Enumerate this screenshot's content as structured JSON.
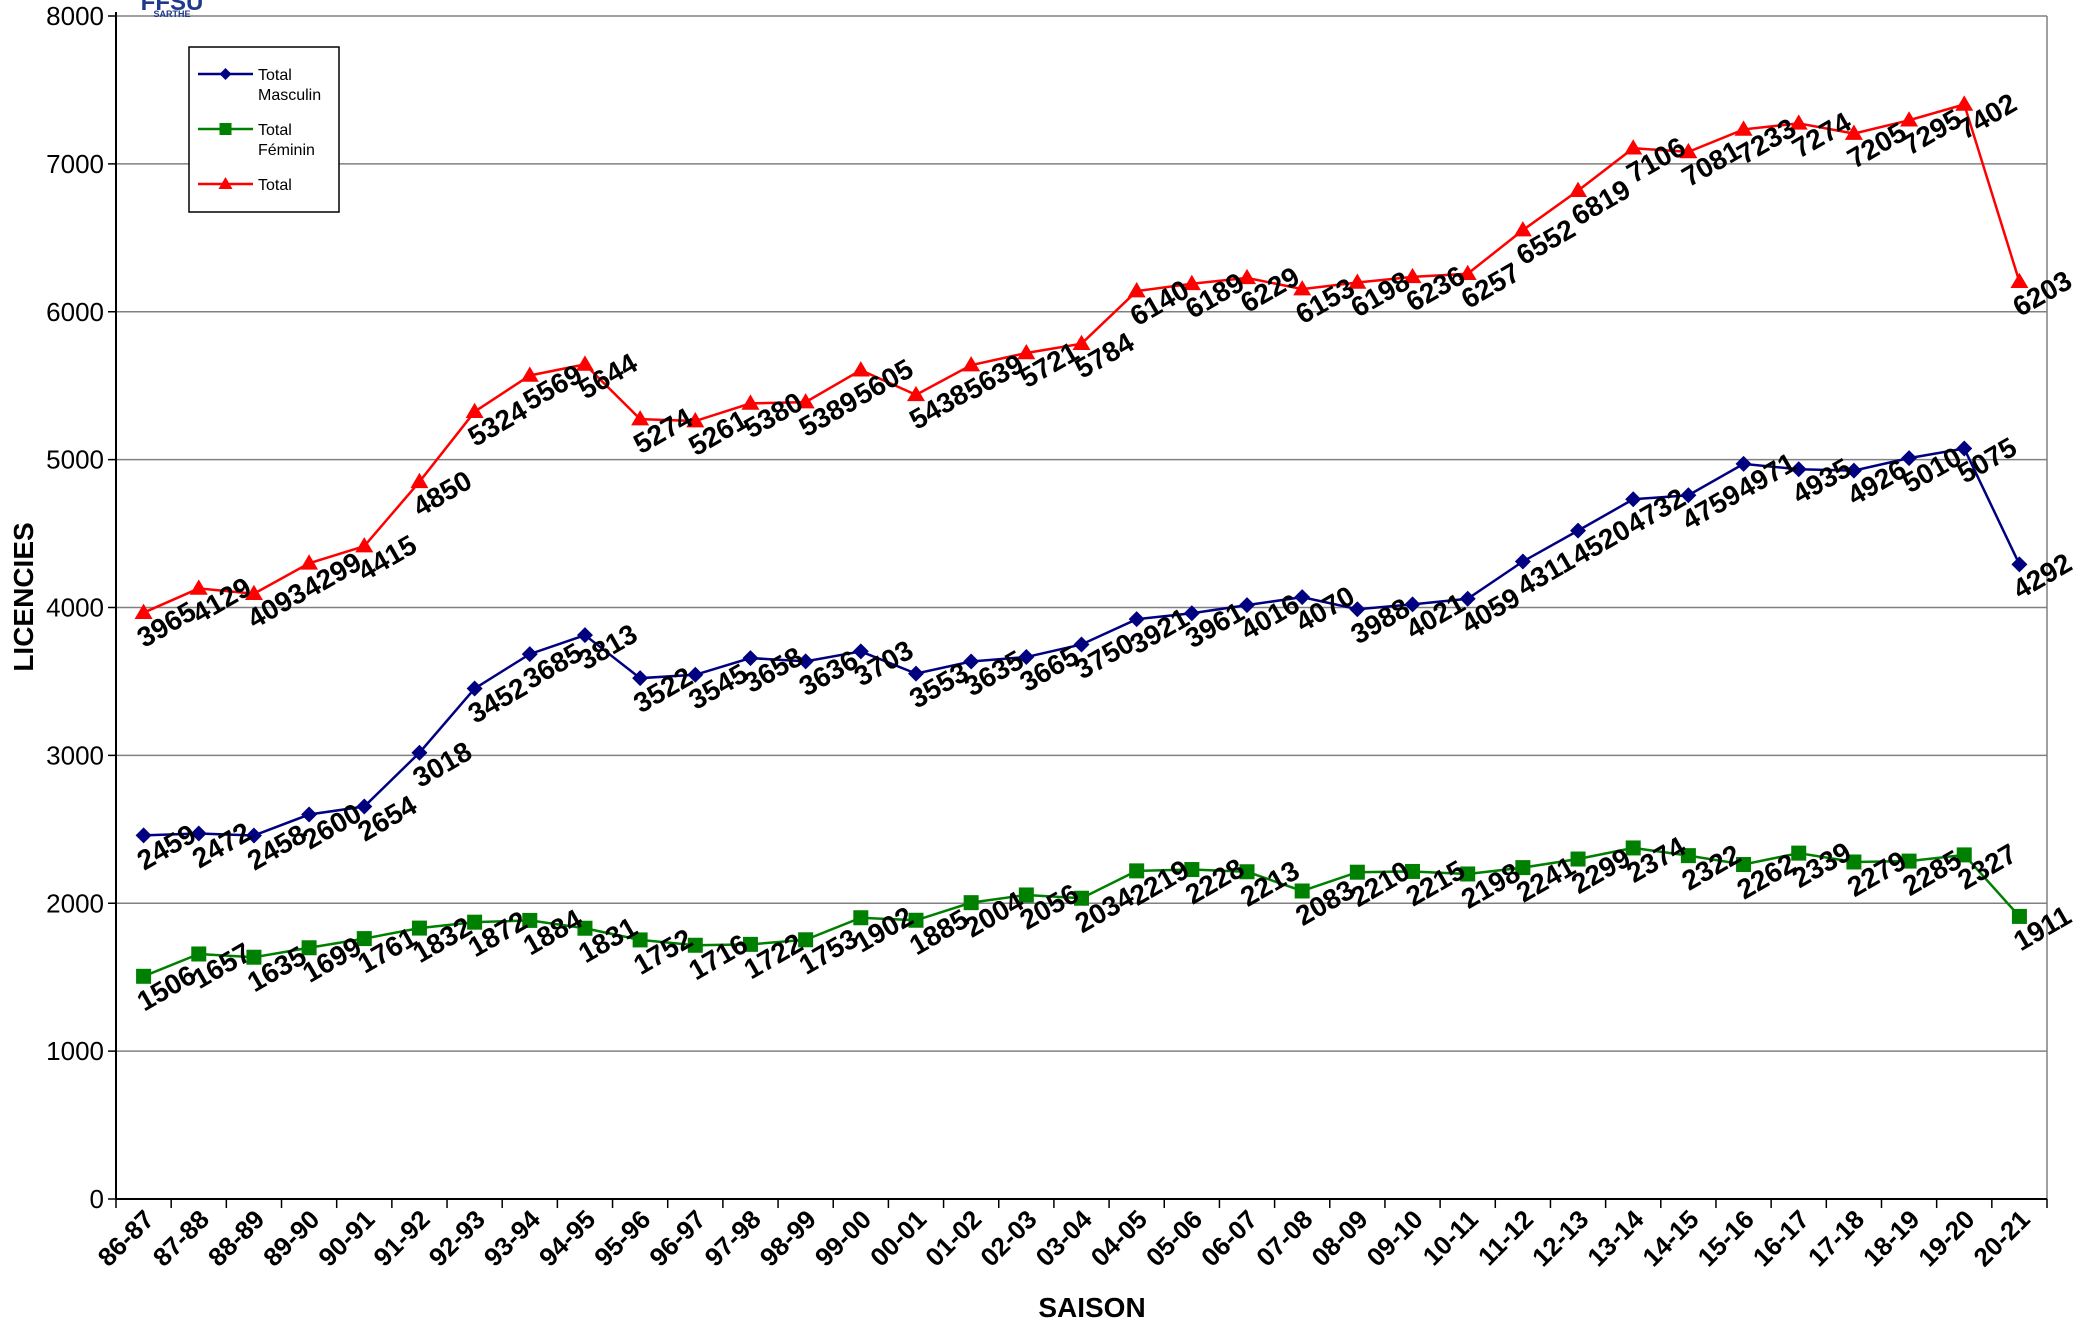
{
  "logo": {
    "line1": "FFSU",
    "line2": "SARTHE"
  },
  "chart_data": {
    "type": "line",
    "title": "",
    "xlabel": "SAISON",
    "ylabel": "LICENCIES",
    "ylim": [
      0,
      8000
    ],
    "yticks": [
      0,
      1000,
      2000,
      3000,
      4000,
      5000,
      6000,
      7000,
      8000
    ],
    "grid": true,
    "legend_position": "top-left",
    "categories": [
      "86-87",
      "87-88",
      "88-89",
      "89-90",
      "90-91",
      "91-92",
      "92-93",
      "93-94",
      "94-95",
      "95-96",
      "96-97",
      "97-98",
      "98-99",
      "99-00",
      "00-01",
      "01-02",
      "02-03",
      "03-04",
      "04-05",
      "05-06",
      "06-07",
      "07-08",
      "08-09",
      "09-10",
      "10-11",
      "11-12",
      "12-13",
      "13-14",
      "14-15",
      "15-16",
      "16-17",
      "17-18",
      "18-19",
      "19-20",
      "20-21"
    ],
    "series": [
      {
        "name": "Total Masculin",
        "color": "#000080",
        "marker": "diamond",
        "values": [
          2459,
          2472,
          2458,
          2600,
          2654,
          3018,
          3452,
          3685,
          3813,
          3522,
          3545,
          3658,
          3636,
          3703,
          3553,
          3635,
          3665,
          3750,
          3921,
          3961,
          4016,
          4070,
          3988,
          4021,
          4059,
          4311,
          4520,
          4732,
          4759,
          4971,
          4935,
          4926,
          5010,
          5075,
          4292
        ]
      },
      {
        "name": "Total Féminin",
        "color": "#008000",
        "marker": "square",
        "values": [
          1506,
          1657,
          1635,
          1699,
          1761,
          1832,
          1872,
          1884,
          1831,
          1752,
          1716,
          1722,
          1753,
          1902,
          1885,
          2004,
          2056,
          2034,
          2219,
          2228,
          2213,
          2083,
          2210,
          2215,
          2198,
          2241,
          2299,
          2374,
          2322,
          2262,
          2339,
          2279,
          2285,
          2327,
          1911
        ]
      },
      {
        "name": "Total",
        "color": "#ff0000",
        "marker": "triangle",
        "values": [
          3965,
          4129,
          4093,
          4299,
          4415,
          4850,
          5324,
          5569,
          5644,
          5274,
          5261,
          5380,
          5389,
          5605,
          5438,
          5639,
          5721,
          5784,
          6140,
          6189,
          6229,
          6153,
          6198,
          6236,
          6257,
          6552,
          6819,
          7106,
          7081,
          7233,
          7274,
          7205,
          7295,
          7402,
          6203
        ]
      }
    ]
  }
}
